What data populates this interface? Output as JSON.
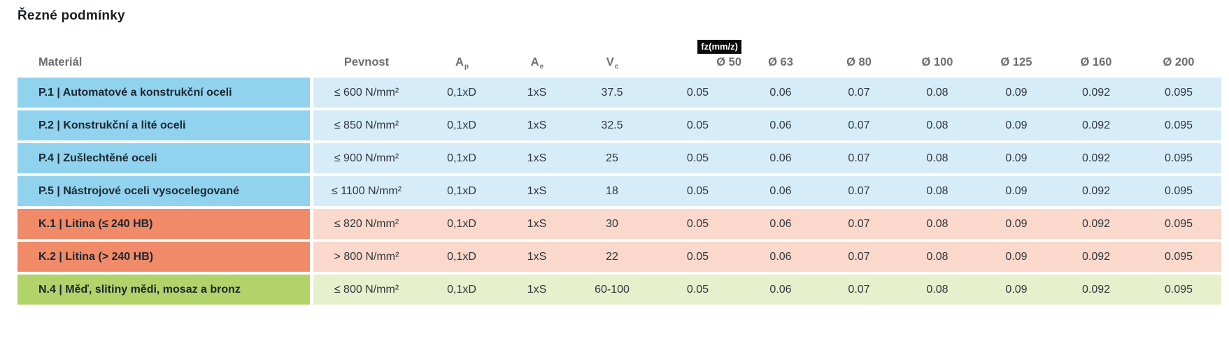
{
  "title": "Řezné podmínky",
  "colors": {
    "steel_dark": "#91d3ee",
    "steel_light": "#d6edf9",
    "cast_iron_dark": "#f08a68",
    "cast_iron_light": "#fad8cb",
    "nonferrous_dark": "#b2d36a",
    "nonferrous_light": "#e6f0cc",
    "badge_bg": "#0a0a0a",
    "badge_text": "#ffffff",
    "header_text": "#6d6e71"
  },
  "table": {
    "headers": {
      "material": "Materiál",
      "pevnost": "Pevnost",
      "ap_base": "A",
      "ap_sub": "p",
      "ae_base": "A",
      "ae_sub": "e",
      "vc_base": "V",
      "vc_sub": "c",
      "fz_badge": "fz(mm/z)",
      "diameters": [
        "Ø 50",
        "Ø 63",
        "Ø 80",
        "Ø 100",
        "Ø 125",
        "Ø 160",
        "Ø 200"
      ]
    },
    "rows": [
      {
        "material": "P.1 | Automatové a konstrukční oceli",
        "group": "P",
        "pevnost": "≤ 600 N/mm²",
        "ap": "0,1xD",
        "ae": "1xS",
        "vc": "37.5",
        "fz": [
          "0.05",
          "0.06",
          "0.07",
          "0.08",
          "0.09",
          "0.092",
          "0.095"
        ]
      },
      {
        "material": "P.2 | Konstrukční a lité oceli",
        "group": "P",
        "pevnost": "≤ 850 N/mm²",
        "ap": "0,1xD",
        "ae": "1xS",
        "vc": "32.5",
        "fz": [
          "0.05",
          "0.06",
          "0.07",
          "0.08",
          "0.09",
          "0.092",
          "0.095"
        ]
      },
      {
        "material": "P.4 | Zušlechtěné oceli",
        "group": "P",
        "pevnost": "≤ 900 N/mm²",
        "ap": "0,1xD",
        "ae": "1xS",
        "vc": "25",
        "fz": [
          "0.05",
          "0.06",
          "0.07",
          "0.08",
          "0.09",
          "0.092",
          "0.095"
        ]
      },
      {
        "material": "P.5 | Nástrojové oceli vysocelegované",
        "group": "P",
        "pevnost": "≤ 1100 N/mm²",
        "ap": "0,1xD",
        "ae": "1xS",
        "vc": "18",
        "fz": [
          "0.05",
          "0.06",
          "0.07",
          "0.08",
          "0.09",
          "0.092",
          "0.095"
        ]
      },
      {
        "material": "K.1 | Litina (≤ 240 HB)",
        "group": "K",
        "pevnost": "≤ 820 N/mm²",
        "ap": "0,1xD",
        "ae": "1xS",
        "vc": "30",
        "fz": [
          "0.05",
          "0.06",
          "0.07",
          "0.08",
          "0.09",
          "0.092",
          "0.095"
        ]
      },
      {
        "material": "K.2 | Litina (> 240 HB)",
        "group": "K",
        "pevnost": "> 800 N/mm²",
        "ap": "0,1xD",
        "ae": "1xS",
        "vc": "22",
        "fz": [
          "0.05",
          "0.06",
          "0.07",
          "0.08",
          "0.09",
          "0.092",
          "0.095"
        ]
      },
      {
        "material": "N.4 | Měď, slitiny mědi, mosaz a bronz",
        "group": "N",
        "pevnost": "≤ 800 N/mm²",
        "ap": "0,1xD",
        "ae": "1xS",
        "vc": "60-100",
        "fz": [
          "0.05",
          "0.06",
          "0.07",
          "0.08",
          "0.09",
          "0.092",
          "0.095"
        ]
      }
    ]
  }
}
